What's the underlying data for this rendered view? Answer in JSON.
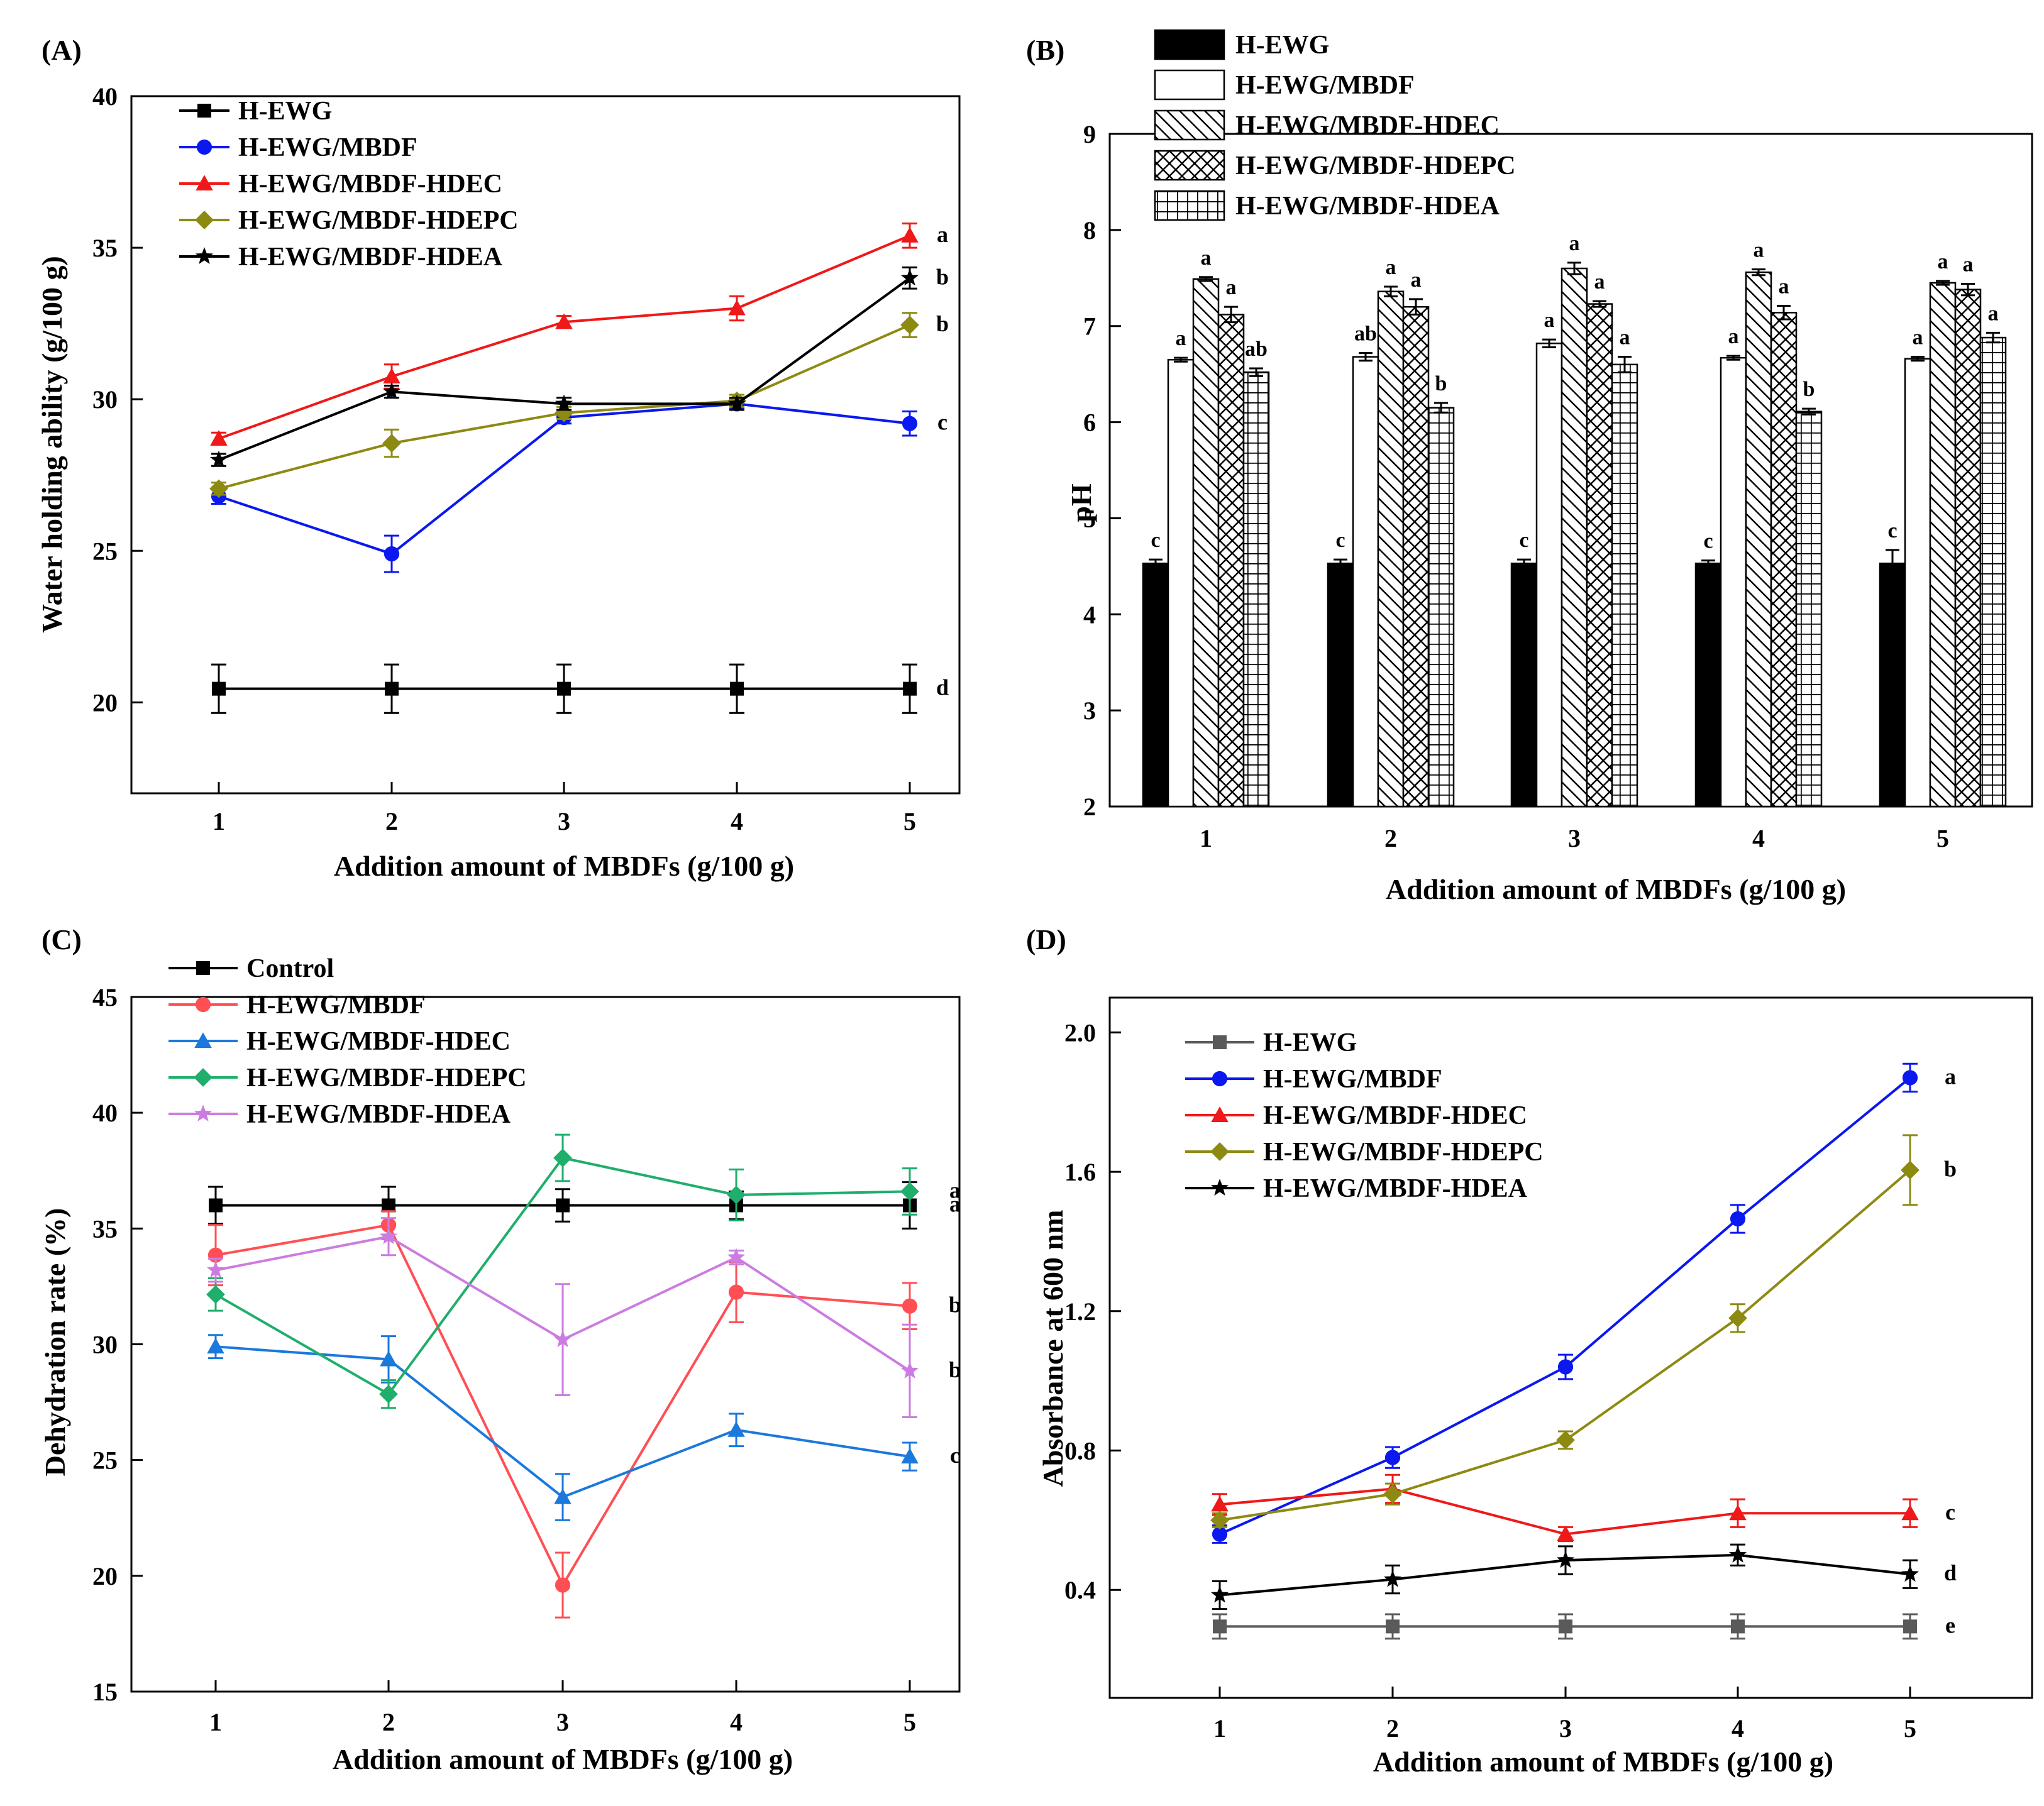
{
  "figure": {
    "x_categories": [
      "1",
      "2",
      "3",
      "4",
      "5"
    ],
    "colors": {
      "black": "#000000",
      "blue": "#0b18f0",
      "red": "#f01818",
      "olive": "#8d8a12",
      "gray": "#5a5a5a",
      "pink_red": "#ff4f55",
      "sky_blue": "#1b78dc",
      "green": "#1fae6c",
      "violet": "#cc7ce0"
    }
  },
  "chart_data": [
    {
      "panel": "(A)",
      "type": "line",
      "xlabel": "Addition amount of MBDFs (g/100 g)",
      "ylabel": "Water holding ability (g/100 g)",
      "categories": [
        "1",
        "2",
        "3",
        "4",
        "5"
      ],
      "ylim": [
        17,
        40
      ],
      "yticks": [
        "20",
        "25",
        "30",
        "35",
        "40"
      ],
      "legend_position": "top-left",
      "series": [
        {
          "name": "H-EWG",
          "marker": "square",
          "color": "#000000",
          "values": [
            20.45,
            20.45,
            20.45,
            20.45,
            20.45
          ],
          "errors": [
            0.8,
            0.8,
            0.8,
            0.8,
            0.8
          ],
          "sig": "d"
        },
        {
          "name": "H-EWG/MBDF",
          "marker": "circle",
          "color": "#0b18f0",
          "values": [
            26.8,
            24.9,
            29.4,
            29.85,
            29.2
          ],
          "errors": [
            0.25,
            0.6,
            0.2,
            0.15,
            0.4
          ],
          "sig": "c"
        },
        {
          "name": "H-EWG/MBDF-HDEC",
          "marker": "triangle",
          "color": "#f01818",
          "values": [
            28.7,
            30.75,
            32.55,
            33.0,
            35.4
          ],
          "errors": [
            0.2,
            0.4,
            0.2,
            0.4,
            0.4
          ],
          "sig": "a"
        },
        {
          "name": "H-EWG/MBDF-HDEPC",
          "marker": "diamond",
          "color": "#8d8a12",
          "values": [
            27.05,
            28.55,
            29.55,
            29.95,
            32.45
          ],
          "errors": [
            0.2,
            0.45,
            0.2,
            0.2,
            0.4
          ],
          "sig": "b"
        },
        {
          "name": "H-EWG/MBDF-HDEA",
          "marker": "star",
          "color": "#000000",
          "values": [
            28.0,
            30.25,
            29.85,
            29.85,
            34.0
          ],
          "errors": [
            0.2,
            0.2,
            0.2,
            0.2,
            0.35
          ],
          "sig": "b"
        }
      ]
    },
    {
      "panel": "(B)",
      "type": "bar",
      "xlabel": "Addition amount of MBDFs (g/100 g)",
      "ylabel": "pH",
      "categories": [
        "1",
        "2",
        "3",
        "4",
        "5"
      ],
      "ylim": [
        2,
        9
      ],
      "yticks": [
        "2",
        "3",
        "4",
        "5",
        "6",
        "7",
        "8",
        "9"
      ],
      "legend_position": "top-left",
      "series": [
        {
          "name": "H-EWG",
          "pattern": "solid",
          "values": [
            4.53,
            4.53,
            4.53,
            4.53,
            4.53
          ],
          "errors": [
            0.04,
            0.04,
            0.04,
            0.03,
            0.14
          ],
          "labels": [
            "c",
            "c",
            "c",
            "c",
            "c"
          ]
        },
        {
          "name": "H-EWG/MBDF",
          "pattern": "open",
          "values": [
            6.65,
            6.68,
            6.82,
            6.67,
            6.66
          ],
          "errors": [
            0.02,
            0.04,
            0.04,
            0.02,
            0.02
          ],
          "labels": [
            "a",
            "ab",
            "a",
            "a",
            "a"
          ]
        },
        {
          "name": "H-EWG/MBDF-HDEC",
          "pattern": "diagonal",
          "values": [
            7.49,
            7.36,
            7.6,
            7.56,
            7.45
          ],
          "errors": [
            0.02,
            0.05,
            0.06,
            0.03,
            0.02
          ],
          "labels": [
            "a",
            "a",
            "a",
            "a",
            "a"
          ]
        },
        {
          "name": "H-EWG/MBDF-HDEPC",
          "pattern": "crosshatch",
          "values": [
            7.12,
            7.2,
            7.23,
            7.14,
            7.38
          ],
          "errors": [
            0.08,
            0.08,
            0.03,
            0.07,
            0.06
          ],
          "labels": [
            "a",
            "a",
            "a",
            "a",
            "a"
          ]
        },
        {
          "name": "H-EWG/MBDF-HDEA",
          "pattern": "grid",
          "values": [
            6.52,
            6.15,
            6.6,
            6.11,
            6.88
          ],
          "errors": [
            0.04,
            0.05,
            0.08,
            0.03,
            0.05
          ],
          "labels": [
            "ab",
            "b",
            "a",
            "b",
            "a"
          ]
        }
      ]
    },
    {
      "panel": "(C)",
      "type": "line",
      "xlabel": "Addition amount of MBDFs (g/100 g)",
      "ylabel": "Dehydration rate (%)",
      "categories": [
        "1",
        "2",
        "3",
        "4",
        "5"
      ],
      "ylim": [
        15,
        45
      ],
      "yticks": [
        "15",
        "20",
        "25",
        "30",
        "35",
        "40",
        "45"
      ],
      "legend_position": "top-left",
      "series": [
        {
          "name": "Control",
          "marker": "square",
          "color": "#000000",
          "values": [
            36.0,
            36.0,
            36.0,
            36.0,
            36.0
          ],
          "errors": [
            0.8,
            0.8,
            0.7,
            0.6,
            1.0
          ],
          "sig": "a"
        },
        {
          "name": "H-EWG/MBDF",
          "marker": "circle",
          "color": "#ff4f55",
          "values": [
            33.85,
            35.15,
            19.6,
            32.25,
            31.65
          ],
          "errors": [
            1.3,
            0.6,
            1.4,
            1.3,
            1.0
          ],
          "sig": "b"
        },
        {
          "name": "H-EWG/MBDF-HDEC",
          "marker": "triangle",
          "color": "#1b78dc",
          "values": [
            29.9,
            29.35,
            23.4,
            26.3,
            25.15
          ],
          "errors": [
            0.5,
            1.0,
            1.0,
            0.7,
            0.6
          ],
          "sig": "c"
        },
        {
          "name": "H-EWG/MBDF-HDEPC",
          "marker": "diamond",
          "color": "#1fae6c",
          "values": [
            32.15,
            27.85,
            38.05,
            36.45,
            36.6
          ],
          "errors": [
            0.7,
            0.6,
            1.0,
            1.1,
            1.0
          ],
          "sig": "a"
        },
        {
          "name": "H-EWG/MBDF-HDEA",
          "marker": "star",
          "color": "#cc7ce0",
          "values": [
            33.2,
            34.65,
            30.2,
            33.75,
            28.85
          ],
          "errors": [
            0.5,
            0.8,
            2.4,
            0.3,
            2.0
          ],
          "sig": "b"
        }
      ]
    },
    {
      "panel": "(D)",
      "type": "line",
      "xlabel": "Addition amount of MBDFs (g/100 g)",
      "ylabel": "Absorbance at 600 nm",
      "categories": [
        "1",
        "2",
        "3",
        "4",
        "5"
      ],
      "ylim": [
        0.09,
        2.1
      ],
      "yticks": [
        "0.4",
        "0.8",
        "1.2",
        "1.6",
        "2.0"
      ],
      "legend_position": "top-left",
      "series": [
        {
          "name": "H-EWG",
          "marker": "square",
          "color": "#5a5a5a",
          "values": [
            0.295,
            0.295,
            0.295,
            0.295,
            0.295
          ],
          "errors": [
            0.035,
            0.035,
            0.035,
            0.035,
            0.035
          ],
          "sig": "e"
        },
        {
          "name": "H-EWG/MBDF",
          "marker": "circle",
          "color": "#0b18f0",
          "values": [
            0.56,
            0.78,
            1.04,
            1.465,
            1.87
          ],
          "errors": [
            0.025,
            0.03,
            0.035,
            0.04,
            0.04
          ],
          "sig": "a"
        },
        {
          "name": "H-EWG/MBDF-HDEC",
          "marker": "triangle",
          "color": "#f01818",
          "values": [
            0.645,
            0.69,
            0.56,
            0.62,
            0.62
          ],
          "errors": [
            0.03,
            0.04,
            0.02,
            0.04,
            0.04
          ],
          "sig": "c"
        },
        {
          "name": "H-EWG/MBDF-HDEPC",
          "marker": "diamond",
          "color": "#8d8a12",
          "values": [
            0.6,
            0.675,
            0.83,
            1.18,
            1.605
          ],
          "errors": [
            0.02,
            0.03,
            0.025,
            0.04,
            0.1
          ],
          "sig": "b"
        },
        {
          "name": "H-EWG/MBDF-HDEA",
          "marker": "star",
          "color": "#000000",
          "values": [
            0.385,
            0.43,
            0.485,
            0.5,
            0.445
          ],
          "errors": [
            0.04,
            0.04,
            0.04,
            0.03,
            0.04
          ],
          "sig": "d"
        }
      ]
    }
  ]
}
